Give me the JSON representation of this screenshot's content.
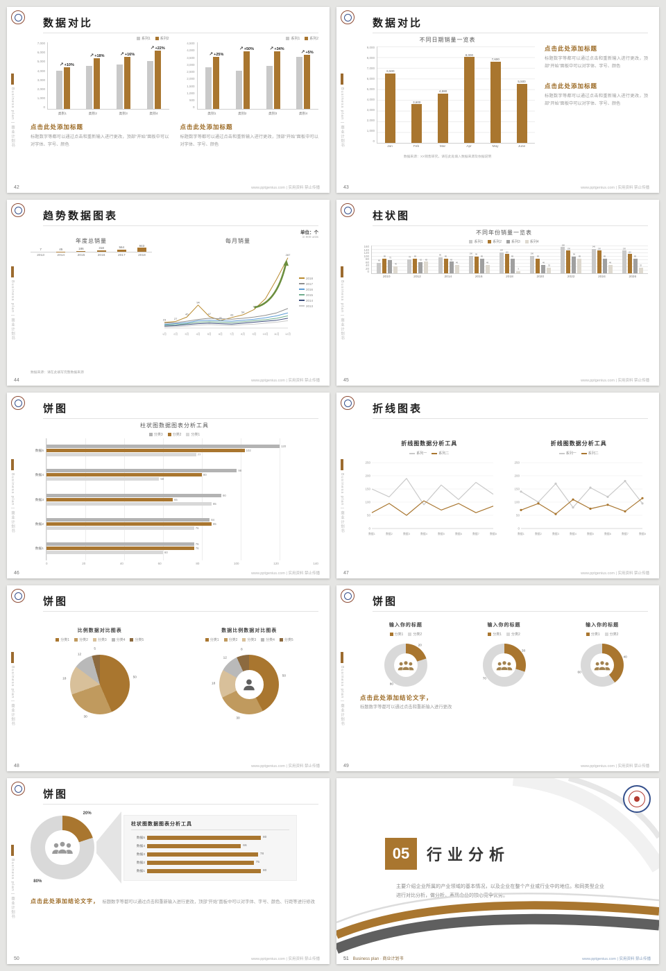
{
  "page": {
    "sidebar_text": "Business plan | 商业计划书",
    "footer_brand": "www.pptgenius.com | 实用资料 禁止传播"
  },
  "colors": {
    "accent": "#a9762f",
    "gray": "#c9c9c9",
    "series4": [
      "#c9c9c9",
      "#a9762f",
      "#a0a0a0",
      "#ded9cf"
    ],
    "hbar3": [
      "#b3b3b3",
      "#a9762f",
      "#d8d8d8"
    ],
    "pie5": [
      "#a9762f",
      "#c09a5e",
      "#d8c09a",
      "#b9b9b9",
      "#8c6a3f"
    ],
    "donut2": [
      "#a9762f",
      "#d9d9d9"
    ]
  },
  "slides": {
    "s42": {
      "number": "42",
      "title": "数据对比",
      "chart_left": {
        "type": "bar",
        "legend": [
          "系列1",
          "系列2"
        ],
        "yticks": [
          "7,000",
          "6,000",
          "5,000",
          "4,000",
          "3,000",
          "2,000",
          "1,000",
          "0"
        ],
        "ymax": 7000,
        "categories": [
          "类别1",
          "类别2",
          "类别3",
          "类别4"
        ],
        "series": [
          {
            "name": "系列1",
            "values": [
              4000,
              4500,
              4700,
              5000
            ]
          },
          {
            "name": "系列2",
            "values": [
              4400,
              5310,
              5450,
              6100
            ]
          }
        ],
        "growth": [
          "+10%",
          "+18%",
          "+16%",
          "+22%"
        ]
      },
      "chart_right": {
        "type": "bar",
        "legend": [
          "系列1",
          "系列2"
        ],
        "yticks": [
          "4,500",
          "4,000",
          "3,500",
          "3,000",
          "2,500",
          "2,000",
          "1,500",
          "1,000",
          "500",
          "0"
        ],
        "ymax": 4500,
        "categories": [
          "类别1",
          "类别2",
          "类别3",
          "类别4"
        ],
        "series": [
          {
            "name": "系列1",
            "values": [
              2800,
              2600,
              2900,
              3500
            ]
          },
          {
            "name": "系列2",
            "values": [
              3500,
              3900,
              3880,
              3680
            ]
          }
        ],
        "growth": [
          "+25%",
          "+50%",
          "+34%",
          "+5%"
        ]
      },
      "blocks": [
        {
          "heading": "点击此处添加标题",
          "body": "标题数字等都可以通过点击和重新输入进行更改，顶部“开始”面板中可以对字体、字号、颜色"
        },
        {
          "heading": "点击此处添加标题",
          "body": "标题数字等都可以通过点击和重新输入进行更改，顶部“开始”面板中可以对字体、字号、颜色"
        }
      ]
    },
    "s43": {
      "number": "43",
      "title": "数据对比",
      "chart": {
        "type": "bar",
        "title": "不同日期销量一览表",
        "yticks": [
          "9,000",
          "8,000",
          "7,000",
          "6,000",
          "5,000",
          "4,000",
          "3,000",
          "2,000",
          "1,000",
          "0"
        ],
        "ymax": 9000,
        "categories": [
          "Jan",
          "Feb",
          "Mar",
          "Apr",
          "May",
          "June"
        ],
        "values": [
          6500,
          3600,
          4590,
          8000,
          7600,
          5500
        ],
        "value_labels": [
          "6,500",
          "3,600",
          "4,590",
          "8,000",
          "7,600",
          "5,500"
        ]
      },
      "blocks": [
        {
          "heading": "点击此处添加标题",
          "body": "标题数字等都可以通过点击和重新输入进行更改，顶部“开始”面板中可以对字体、字号、颜色"
        },
        {
          "heading": "点击此处添加标题",
          "body": "标题数字等都可以通过点击和重新输入进行更改，顶部“开始”面板中可以对字体、字号、颜色"
        }
      ],
      "source_note": "数据来源：XX销售研究，请在此处填入数据来源及依据说明"
    },
    "s44": {
      "number": "44",
      "title": "趋势数据图表",
      "unit_label": "单位：个",
      "unit_sub": "in 900 units",
      "bar_chart": {
        "type": "bar",
        "title": "年度总销量",
        "categories": [
          "2013",
          "2014",
          "2015",
          "2016",
          "2017",
          "2018"
        ],
        "values": [
          7,
          45,
          186,
          318,
          564,
          943
        ],
        "ymax": 1000
      },
      "line_chart": {
        "type": "line",
        "title": "每月销量",
        "x": [
          "1月",
          "2月",
          "3月",
          "4月",
          "5月",
          "6月",
          "7月",
          "8月",
          "9月",
          "10月",
          "11月",
          "12月"
        ],
        "ymax": 300,
        "series": [
          {
            "name": "2018",
            "color": "#b98a2e",
            "values": [
              23,
              27,
              45,
              94,
              47,
              31,
              43,
              54,
              76,
              120,
              200,
              287
            ]
          },
          {
            "name": "2017",
            "color": "#8f8f8f",
            "values": [
              20,
              22,
              28,
              35,
              40,
              38,
              36,
              40,
              45,
              52,
              62,
              80
            ]
          },
          {
            "name": "2016",
            "color": "#5b9bd5",
            "values": [
              15,
              18,
              22,
              30,
              32,
              30,
              28,
              32,
              36,
              42,
              50,
              62
            ]
          },
          {
            "name": "2015",
            "color": "#70ad8e",
            "values": [
              12,
              14,
              18,
              24,
              26,
              24,
              22,
              26,
              30,
              34,
              40,
              50
            ]
          },
          {
            "name": "2014",
            "color": "#3a4b7a",
            "values": [
              8,
              10,
              14,
              18,
              20,
              18,
              16,
              20,
              24,
              28,
              32,
              40
            ]
          },
          {
            "name": "2013",
            "color": "#c9c9c9",
            "values": [
              5,
              6,
              8,
              12,
              14,
              12,
              10,
              14,
              16,
              20,
              24,
              30
            ]
          }
        ]
      },
      "source_note": "数据来源：请在此填写完整数据来源"
    },
    "s45": {
      "number": "45",
      "title": "柱状图",
      "chart": {
        "type": "bar",
        "title": "不同年份销量一览表",
        "legend": [
          "系列1",
          "系列2",
          "系列3",
          "系列4"
        ],
        "yticks": [
          "160",
          "140",
          "120",
          "100",
          "80",
          "60",
          "40",
          "20",
          "0"
        ],
        "ymax": 160,
        "categories": [
          "2010",
          "2012",
          "2014",
          "2016",
          "2018",
          "2020",
          "2022",
          "2024",
          "2026"
        ],
        "series": [
          {
            "name": "系列1",
            "values": [
              60,
              78,
              90,
              100,
              120,
              100,
              150,
              140,
              130
            ]
          },
          {
            "name": "系列2",
            "values": [
              85,
              85,
              85,
              96,
              110,
              85,
              130,
              130,
              110
            ]
          },
          {
            "name": "系列3",
            "values": [
              75,
              62,
              65,
              85,
              85,
              46,
              96,
              85,
              85
            ]
          },
          {
            "name": "系列4",
            "values": [
              40,
              65,
              46,
              46,
              9,
              32,
              85,
              46,
              32
            ]
          }
        ]
      }
    },
    "s46": {
      "number": "46",
      "title": "饼图",
      "chart": {
        "type": "bar",
        "title": "柱状图数据图表分析工具",
        "legend": [
          "分类3",
          "分类2",
          "分类1"
        ],
        "xticks": [
          "0",
          "20",
          "40",
          "60",
          "80",
          "100",
          "120",
          "140"
        ],
        "xmax": 140,
        "categories": [
          "数据5",
          "数据4",
          "数据3",
          "数据2",
          "数据1"
        ],
        "series": [
          {
            "name": "分类3",
            "values": [
              120,
              98,
              90,
              84,
              76
            ]
          },
          {
            "name": "分类2",
            "values": [
              102,
              80,
              65,
              85,
              76
            ]
          },
          {
            "name": "分类1",
            "values": [
              77,
              58,
              85,
              76,
              60
            ]
          }
        ]
      }
    },
    "s47": {
      "number": "47",
      "title": "折线图表",
      "charts": [
        {
          "type": "line",
          "title": "折线图数据分析工具",
          "legend": [
            "系列一",
            "系列二"
          ],
          "yticks": [
            "250",
            "200",
            "150",
            "100",
            "50",
            "0"
          ],
          "ymax": 250,
          "x": [
            "数据1",
            "数据2",
            "数据3",
            "数据4",
            "数据5",
            "数据6",
            "数据7",
            "数据8"
          ],
          "series": [
            {
              "name": "系列一",
              "values": [
                150,
                120,
                190,
                90,
                165,
                110,
                175,
                130
              ]
            },
            {
              "name": "系列二",
              "values": [
                60,
                95,
                50,
                105,
                70,
                95,
                60,
                85
              ]
            }
          ]
        },
        {
          "type": "line",
          "title": "折线图数据分析工具",
          "legend": [
            "系列一",
            "系列二"
          ],
          "yticks": [
            "250",
            "200",
            "150",
            "100",
            "50",
            "0"
          ],
          "ymax": 250,
          "x": [
            "数据1",
            "数据2",
            "数据3",
            "数据4",
            "数据5",
            "数据6",
            "数据7",
            "数据8"
          ],
          "series": [
            {
              "name": "系列一",
              "values": [
                140,
                100,
                170,
                80,
                155,
                120,
                180,
                95
              ]
            },
            {
              "name": "系列二",
              "values": [
                70,
                95,
                55,
                110,
                75,
                90,
                65,
                115
              ]
            }
          ],
          "markers": true
        }
      ]
    },
    "s48": {
      "number": "48",
      "title": "饼图",
      "pie": {
        "type": "pie",
        "title": "比例数据对比图表",
        "legend": [
          "分类1",
          "分类2",
          "分类3",
          "分类4",
          "分类5"
        ],
        "values": [
          50,
          30,
          18,
          12,
          5
        ],
        "labels": [
          "50",
          "30",
          "18",
          "12",
          "5"
        ]
      },
      "donut": {
        "type": "pie",
        "title": "数据比例数据对比图表",
        "legend": [
          "分类1",
          "分类2",
          "分类3",
          "分类4",
          "分类5"
        ],
        "values": [
          50,
          30,
          18,
          12,
          8
        ],
        "labels": [
          "50",
          "30",
          "18",
          "12",
          "8"
        ]
      }
    },
    "s49": {
      "number": "49",
      "title": "饼图",
      "donuts": [
        {
          "title": "输入你的标题",
          "legend": [
            "分类1",
            "分类2"
          ],
          "values": [
            20,
            80
          ],
          "labels": [
            "20",
            "80"
          ]
        },
        {
          "title": "输入你的标题",
          "legend": [
            "分类1",
            "分类2"
          ],
          "values": [
            30,
            70
          ],
          "labels": [
            "30",
            "70"
          ]
        },
        {
          "title": "输入你的标题",
          "legend": [
            "分类1",
            "分类2"
          ],
          "values": [
            40,
            60
          ],
          "labels": [
            "40",
            "60"
          ]
        }
      ],
      "conclusion_heading": "点击此处添加结论文字，",
      "conclusion_body": "标题数字等都可以通过点击和重新输入进行更改"
    },
    "s50": {
      "number": "50",
      "title": "饼图",
      "donut": {
        "type": "pie",
        "values": [
          20,
          80
        ],
        "labels": [
          "20%",
          "80%"
        ]
      },
      "chart": {
        "type": "bar",
        "title": "柱状图数据图表分析工具",
        "categories": [
          "数据5",
          "数据4",
          "数据3",
          "数据2",
          "数据1"
        ],
        "values": [
          80,
          66,
          78,
          75,
          80
        ],
        "xmax": 100
      },
      "conclusion_heading": "点击此处添加结论文字，",
      "conclusion_body": "标题数字等都可以通过点击和重新输入进行更改，顶部“开始”面板中可以对字体、字号、颜色、行距等进行修改"
    },
    "s51": {
      "number": "51",
      "section_number": "05",
      "title": "行业分析",
      "body": "主要介绍企业所属的产业领域的基本情况，以及企业在整个产业或行业中的地位。和同类型企业进行对比分析，做分析，表现企业的核心竞争优势。",
      "footer_left": "Business plan · 商业计划书"
    }
  }
}
